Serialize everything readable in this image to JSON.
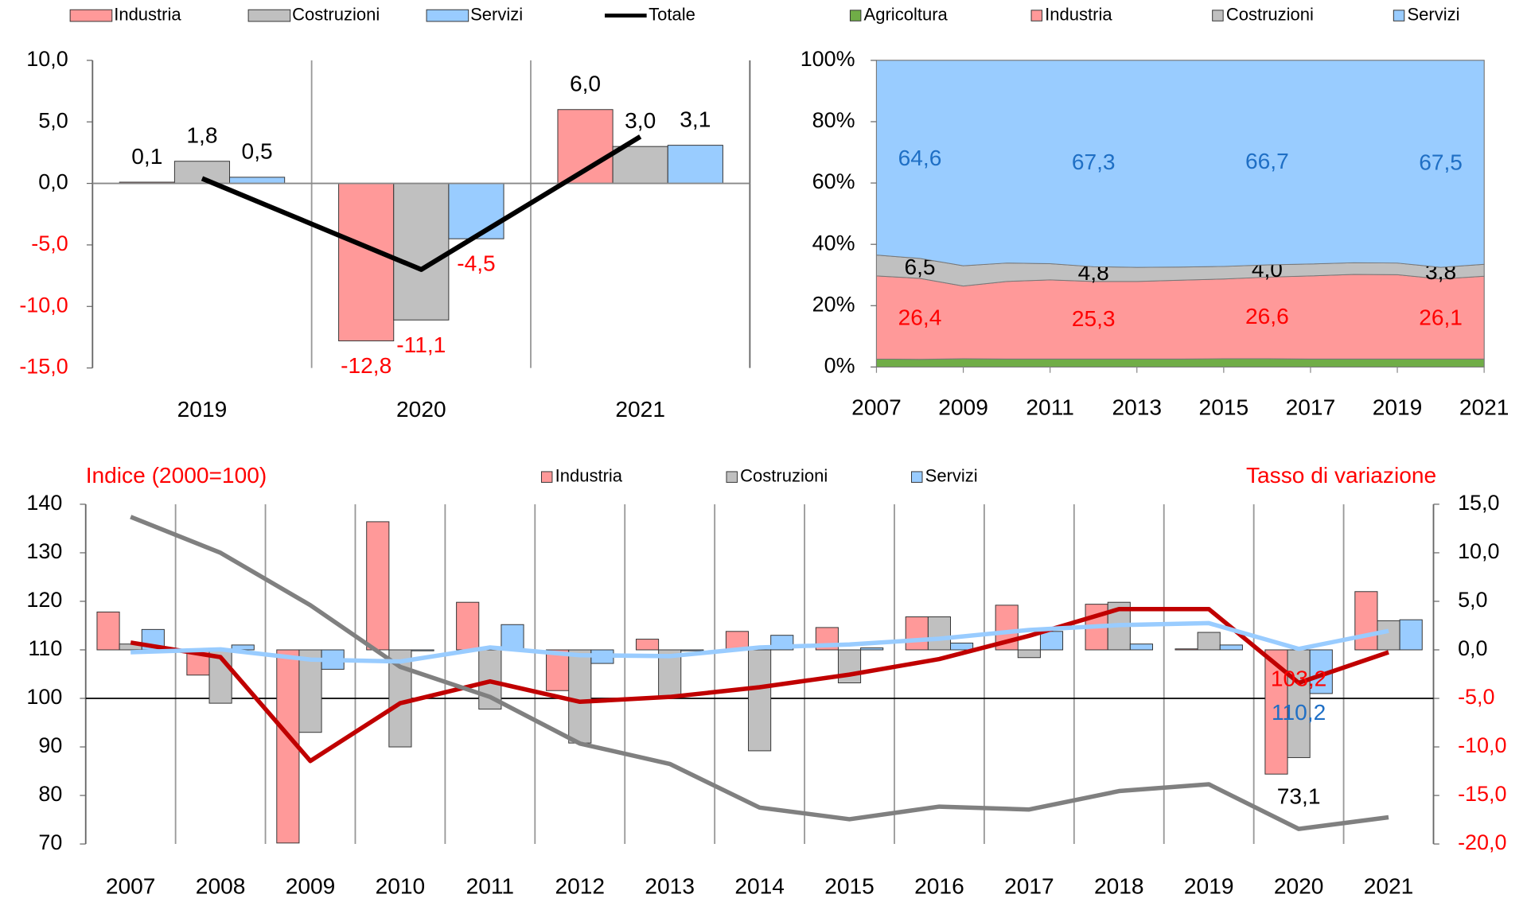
{
  "chart_data": [
    {
      "type": "bar",
      "categories": [
        "2019",
        "2020",
        "2021"
      ],
      "ylim": [
        -15,
        10
      ],
      "yticks": [
        {
          "value": -15,
          "label": "-15,0"
        },
        {
          "value": -10,
          "label": "-10,0"
        },
        {
          "value": -5,
          "label": "-5,0"
        },
        {
          "value": 0,
          "label": "0,0"
        },
        {
          "value": 5,
          "label": "5,0"
        },
        {
          "value": 10,
          "label": "10,0"
        }
      ],
      "negative_color": "#ff0000",
      "legend": "top",
      "series": [
        {
          "name": "Industria",
          "color": "#ff9999",
          "values": [
            0.1,
            -12.8,
            6.0
          ],
          "value_labels": [
            "0,1",
            "-12,8",
            "6,0"
          ]
        },
        {
          "name": "Costruzioni",
          "color": "#c0c0c0",
          "values": [
            1.8,
            -11.1,
            3.0
          ],
          "value_labels": [
            "1,8",
            "-11,1",
            "3,0"
          ]
        },
        {
          "name": "Servizi",
          "color": "#99ccff",
          "values": [
            0.5,
            -4.5,
            3.1
          ],
          "value_labels": [
            "0,5",
            "-4,5",
            "3,1"
          ]
        },
        {
          "name": "Totale",
          "type": "line",
          "color": "#000000",
          "values": [
            0.4,
            -7.0,
            3.8
          ]
        }
      ]
    },
    {
      "type": "area",
      "stacked": true,
      "x": [
        2007,
        2008,
        2009,
        2010,
        2011,
        2012,
        2013,
        2014,
        2015,
        2016,
        2017,
        2018,
        2019,
        2020,
        2021
      ],
      "xlim": [
        2007,
        2021
      ],
      "xticks": [
        2007,
        2009,
        2011,
        2013,
        2015,
        2017,
        2019,
        2021
      ],
      "ylim": [
        0,
        100
      ],
      "yticks": [
        {
          "value": 0,
          "label": "0%"
        },
        {
          "value": 20,
          "label": "20%"
        },
        {
          "value": 40,
          "label": "40%"
        },
        {
          "value": 60,
          "label": "60%"
        },
        {
          "value": 80,
          "label": "80%"
        },
        {
          "value": 100,
          "label": "100%"
        }
      ],
      "legend": "top",
      "series": [
        {
          "name": "Agricoltura",
          "color": "#70ad47",
          "values": [
            2.6,
            2.5,
            2.7,
            2.6,
            2.6,
            2.6,
            2.6,
            2.6,
            2.7,
            2.7,
            2.6,
            2.6,
            2.6,
            2.6,
            2.6
          ]
        },
        {
          "name": "Industria",
          "color": "#ff9999",
          "label_color": "#ff0000",
          "values": [
            27.1,
            26.4,
            23.7,
            25.3,
            25.8,
            25.3,
            25.3,
            25.7,
            26.0,
            26.6,
            27.1,
            27.6,
            27.5,
            26.1,
            27.0
          ],
          "value_labels": [
            null,
            "26,4",
            null,
            null,
            null,
            "25,3",
            null,
            null,
            null,
            "26,6",
            null,
            null,
            null,
            "26,1",
            null
          ]
        },
        {
          "name": "Costruzioni",
          "color": "#c0c0c0",
          "label_color": "#000000",
          "values": [
            6.8,
            6.5,
            6.6,
            6.0,
            5.3,
            4.8,
            4.6,
            4.3,
            4.1,
            4.0,
            3.9,
            3.8,
            3.8,
            3.8,
            3.9
          ],
          "value_labels": [
            null,
            "6,5",
            null,
            null,
            null,
            "4,8",
            null,
            null,
            null,
            "4,0",
            null,
            null,
            null,
            "3,8",
            null
          ]
        },
        {
          "name": "Servizi",
          "color": "#99ccff",
          "label_color": "#1f6fc5",
          "values": [
            63.5,
            64.6,
            67.0,
            66.1,
            66.3,
            67.3,
            67.5,
            67.4,
            67.2,
            66.7,
            66.4,
            66.0,
            66.1,
            67.5,
            66.5
          ],
          "value_labels": [
            null,
            "64,6",
            null,
            null,
            null,
            "67,3",
            null,
            null,
            null,
            "66,7",
            null,
            null,
            null,
            "67,5",
            null
          ]
        }
      ]
    },
    {
      "type": "bar",
      "categories": [
        "2007",
        "2008",
        "2009",
        "2010",
        "2011",
        "2012",
        "2013",
        "2014",
        "2015",
        "2016",
        "2017",
        "2018",
        "2019",
        "2020",
        "2021"
      ],
      "ylabel": "Indice (2000=100)",
      "y2label": "Tasso di variazione",
      "axis_title_color": "#ff0000",
      "ylim": [
        70,
        140
      ],
      "yticks": [
        70,
        80,
        90,
        100,
        110,
        120,
        130,
        140
      ],
      "y2lim": [
        -20,
        15
      ],
      "y2ticks": [
        {
          "value": -20,
          "label": "-20,0"
        },
        {
          "value": -15,
          "label": "-15,0"
        },
        {
          "value": -10,
          "label": "-10,0"
        },
        {
          "value": -5,
          "label": "-5,0"
        },
        {
          "value": 0,
          "label": "0,0"
        },
        {
          "value": 5,
          "label": "5,0"
        },
        {
          "value": 10,
          "label": "10,0"
        },
        {
          "value": 15,
          "label": "15,0"
        }
      ],
      "negative_color": "#ff0000",
      "reference_line": 100,
      "legend": "top",
      "series": [
        {
          "name": "Industria",
          "axis": "y2",
          "color": "#ff9999",
          "values": [
            3.9,
            -2.6,
            -19.9,
            13.2,
            4.9,
            -4.2,
            1.1,
            1.9,
            2.3,
            3.4,
            4.6,
            4.7,
            0.1,
            -12.8,
            6.0
          ]
        },
        {
          "name": "Costruzioni",
          "axis": "y2",
          "color": "#c0c0c0",
          "values": [
            0.6,
            -5.5,
            -8.5,
            -10.0,
            -6.1,
            -9.6,
            -4.9,
            -10.4,
            -3.4,
            3.4,
            -0.8,
            4.9,
            1.8,
            -11.1,
            3.0
          ]
        },
        {
          "name": "Servizi",
          "axis": "y2",
          "color": "#99ccff",
          "values": [
            2.1,
            0.5,
            -2.0,
            -0.1,
            2.6,
            -1.4,
            -0.1,
            1.5,
            0.2,
            0.7,
            1.9,
            0.6,
            0.5,
            -4.5,
            3.1
          ]
        },
        {
          "type": "line",
          "color": "#c00000",
          "label_color": "#ff0000",
          "values": [
            111.5,
            108.5,
            87.1,
            99.0,
            103.5,
            99.3,
            100.3,
            102.3,
            104.9,
            108.1,
            112.9,
            118.4,
            118.4,
            103.2,
            109.5
          ],
          "value_labels": [
            null,
            null,
            null,
            null,
            null,
            null,
            null,
            null,
            null,
            null,
            null,
            null,
            null,
            "103,2",
            null
          ]
        },
        {
          "type": "line",
          "color": "#808080",
          "label_color": "#000000",
          "values": [
            137.4,
            130.0,
            119.2,
            106.5,
            100.3,
            90.7,
            86.5,
            77.5,
            75.1,
            77.7,
            77.1,
            80.9,
            82.3,
            73.1,
            75.5
          ],
          "value_labels": [
            null,
            null,
            null,
            null,
            null,
            null,
            null,
            null,
            null,
            null,
            null,
            null,
            null,
            "73,1",
            null
          ]
        },
        {
          "type": "line",
          "color": "#99ccff",
          "label_color": "#1f6fc5",
          "values": [
            109.5,
            110.1,
            108.0,
            107.6,
            110.5,
            108.9,
            108.7,
            110.5,
            111.1,
            112.3,
            114.1,
            115.1,
            115.5,
            110.2,
            113.9
          ],
          "value_labels": [
            null,
            null,
            null,
            null,
            null,
            null,
            null,
            null,
            null,
            null,
            null,
            null,
            null,
            "110,2",
            null
          ]
        }
      ]
    }
  ]
}
